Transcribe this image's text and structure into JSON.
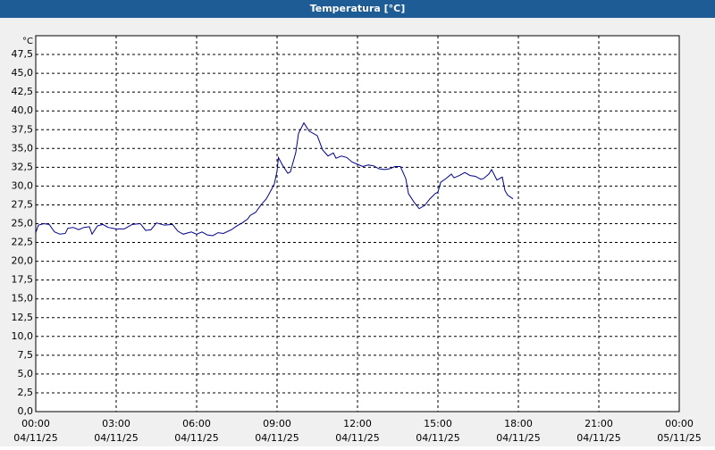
{
  "chart_data": {
    "type": "line",
    "title": "Temperatura [°C]",
    "y_label": "°C",
    "xlim": [
      0,
      24
    ],
    "ylim": [
      0,
      50
    ],
    "grid": true,
    "color": "#00008b",
    "x": [
      0.0,
      0.1,
      0.3,
      0.5,
      0.7,
      0.9,
      1.1,
      1.2,
      1.4,
      1.6,
      1.8,
      2.0,
      2.1,
      2.3,
      2.5,
      2.7,
      3.0,
      3.3,
      3.6,
      3.9,
      4.1,
      4.3,
      4.5,
      4.8,
      5.1,
      5.3,
      5.5,
      5.8,
      6.0,
      6.2,
      6.4,
      6.6,
      6.8,
      7.0,
      7.3,
      7.5,
      7.7,
      7.9,
      8.0,
      8.2,
      8.4,
      8.6,
      8.8,
      8.9,
      9.0,
      9.05,
      9.2,
      9.4,
      9.5,
      9.7,
      9.8,
      10.0,
      10.2,
      10.5,
      10.7,
      10.9,
      11.1,
      11.2,
      11.4,
      11.6,
      11.8,
      12.0,
      12.2,
      12.4,
      12.6,
      12.8,
      13.0,
      13.2,
      13.4,
      13.6,
      13.8,
      13.9,
      14.1,
      14.3,
      14.5,
      14.7,
      14.9,
      15.0,
      15.1,
      15.3,
      15.5,
      15.6,
      15.8,
      16.0,
      16.2,
      16.4,
      16.6,
      16.7,
      16.9,
      17.0,
      17.2,
      17.4,
      17.5,
      17.6,
      17.8
    ],
    "values": [
      23.8,
      24.8,
      25.0,
      24.9,
      23.9,
      23.6,
      23.7,
      24.4,
      24.5,
      24.2,
      24.5,
      24.6,
      23.6,
      24.7,
      24.9,
      24.5,
      24.3,
      24.3,
      24.9,
      25.0,
      24.1,
      24.2,
      25.1,
      24.8,
      24.9,
      24.0,
      23.6,
      23.9,
      23.6,
      23.9,
      23.5,
      23.4,
      23.8,
      23.7,
      24.2,
      24.7,
      25.1,
      25.6,
      26.1,
      26.5,
      27.5,
      28.3,
      29.6,
      30.3,
      32.0,
      33.8,
      32.8,
      31.7,
      31.9,
      34.5,
      37.0,
      38.4,
      37.3,
      36.7,
      34.8,
      34.0,
      34.4,
      33.7,
      34.0,
      33.8,
      33.2,
      32.9,
      32.6,
      32.8,
      32.7,
      32.3,
      32.2,
      32.3,
      32.6,
      32.6,
      31.0,
      29.0,
      27.9,
      27.0,
      27.4,
      28.3,
      29.0,
      29.2,
      30.5,
      31.0,
      31.6,
      31.1,
      31.4,
      31.8,
      31.4,
      31.3,
      30.9,
      31.0,
      31.6,
      32.2,
      30.8,
      31.2,
      29.4,
      28.8,
      28.3
    ],
    "yticks": [
      {
        "value": 0,
        "label": "0,0"
      },
      {
        "value": 2.5,
        "label": "2,5"
      },
      {
        "value": 5,
        "label": "5,0"
      },
      {
        "value": 7.5,
        "label": "7,5"
      },
      {
        "value": 10,
        "label": "10,0"
      },
      {
        "value": 12.5,
        "label": "12,5"
      },
      {
        "value": 15,
        "label": "15,0"
      },
      {
        "value": 17.5,
        "label": "17,5"
      },
      {
        "value": 20,
        "label": "20,0"
      },
      {
        "value": 22.5,
        "label": "22,5"
      },
      {
        "value": 25,
        "label": "25,0"
      },
      {
        "value": 27.5,
        "label": "27,5"
      },
      {
        "value": 30,
        "label": "30,0"
      },
      {
        "value": 32.5,
        "label": "32,5"
      },
      {
        "value": 35,
        "label": "35,0"
      },
      {
        "value": 37.5,
        "label": "37,5"
      },
      {
        "value": 40,
        "label": "40,0"
      },
      {
        "value": 42.5,
        "label": "42,5"
      },
      {
        "value": 45,
        "label": "45,0"
      },
      {
        "value": 47.5,
        "label": "47,5"
      }
    ],
    "xticks": [
      {
        "value": 0,
        "label": [
          "00:00",
          "04/11/25"
        ]
      },
      {
        "value": 3,
        "label": [
          "03:00",
          "04/11/25"
        ]
      },
      {
        "value": 6,
        "label": [
          "06:00",
          "04/11/25"
        ]
      },
      {
        "value": 9,
        "label": [
          "09:00",
          "04/11/25"
        ]
      },
      {
        "value": 12,
        "label": [
          "12:00",
          "04/11/25"
        ]
      },
      {
        "value": 15,
        "label": [
          "15:00",
          "04/11/25"
        ]
      },
      {
        "value": 18,
        "label": [
          "18:00",
          "04/11/25"
        ]
      },
      {
        "value": 21,
        "label": [
          "21:00",
          "04/11/25"
        ]
      },
      {
        "value": 24,
        "label": [
          "00:00",
          "05/11/25"
        ]
      }
    ]
  }
}
